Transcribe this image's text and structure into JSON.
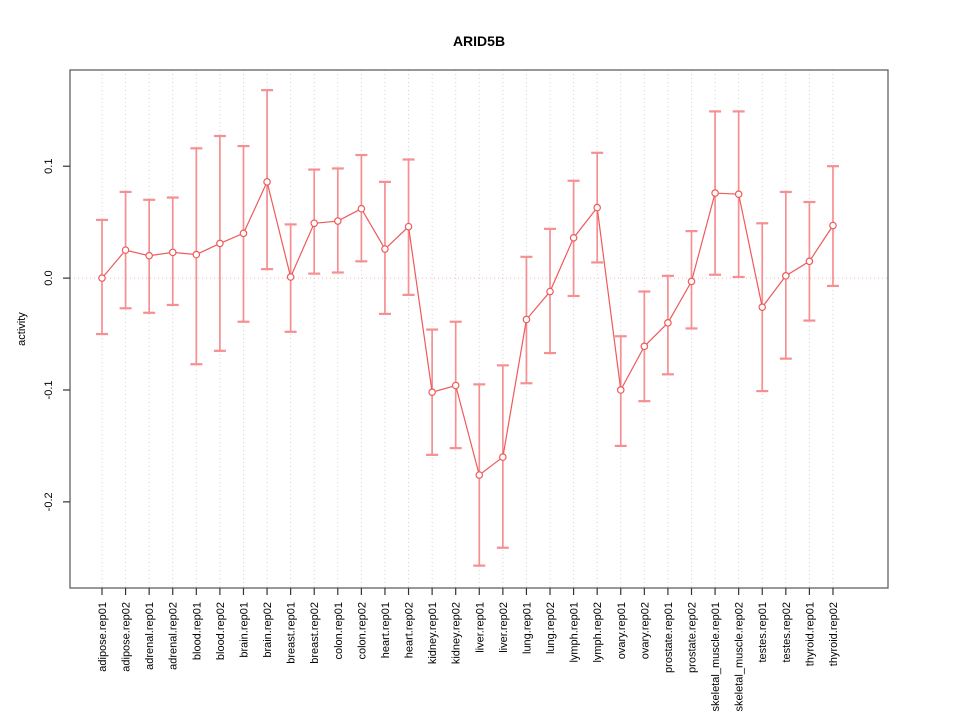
{
  "page": {
    "background": "#ffffff"
  },
  "chart_data": {
    "type": "line",
    "title": "ARID5B",
    "xlabel": "",
    "ylabel": "activity",
    "legend_position": "none",
    "categories": [
      "adipose.rep01",
      "adipose.rep02",
      "adrenal.rep01",
      "adrenal.rep02",
      "blood.rep01",
      "blood.rep02",
      "brain.rep01",
      "brain.rep02",
      "breast.rep01",
      "breast.rep02",
      "colon.rep01",
      "colon.rep02",
      "heart.rep01",
      "heart.rep02",
      "kidney.rep01",
      "kidney.rep02",
      "liver.rep01",
      "liver.rep02",
      "lung.rep01",
      "lung.rep02",
      "lymph.rep01",
      "lymph.rep02",
      "ovary.rep01",
      "ovary.rep02",
      "prostate.rep01",
      "prostate.rep02",
      "skeletal_muscle.rep01",
      "skeletal_muscle.rep02",
      "testes.rep01",
      "testes.rep02",
      "thyroid.rep01",
      "thyroid.rep02"
    ],
    "series": [
      {
        "name": "activity",
        "marker": "open-circle",
        "values": [
          0.0,
          0.025,
          0.02,
          0.023,
          0.021,
          0.031,
          0.04,
          0.086,
          0.001,
          0.049,
          0.051,
          0.062,
          0.026,
          0.046,
          -0.102,
          -0.096,
          -0.176,
          -0.16,
          -0.037,
          -0.012,
          0.036,
          0.063,
          -0.1,
          -0.061,
          -0.04,
          -0.003,
          0.076,
          0.075,
          -0.026,
          0.002,
          0.015,
          0.047
        ],
        "error_low": [
          -0.05,
          -0.027,
          -0.031,
          -0.024,
          -0.077,
          -0.065,
          -0.039,
          0.008,
          -0.048,
          0.004,
          0.005,
          0.015,
          -0.032,
          -0.015,
          -0.158,
          -0.152,
          -0.257,
          -0.241,
          -0.094,
          -0.067,
          -0.016,
          0.014,
          -0.15,
          -0.11,
          -0.086,
          -0.045,
          0.003,
          0.001,
          -0.101,
          -0.072,
          -0.038,
          -0.007
        ],
        "error_high": [
          0.052,
          0.077,
          0.07,
          0.072,
          0.116,
          0.127,
          0.118,
          0.168,
          0.048,
          0.097,
          0.098,
          0.11,
          0.086,
          0.106,
          -0.046,
          -0.039,
          -0.095,
          -0.078,
          0.019,
          0.044,
          0.087,
          0.112,
          -0.052,
          -0.012,
          0.002,
          0.042,
          0.149,
          0.149,
          0.049,
          0.077,
          0.068,
          0.1
        ]
      }
    ],
    "y_ticks": [
      {
        "value": -0.2,
        "label": "-0.2"
      },
      {
        "value": -0.1,
        "label": "-0.1"
      },
      {
        "value": 0.0,
        "label": "0.0"
      },
      {
        "value": 0.1,
        "label": "0.1"
      }
    ],
    "ylim": [
      -0.277,
      0.186
    ],
    "grid": {
      "vertical": true,
      "horizontal": false,
      "style": "dotted"
    },
    "zero_line": {
      "value": 0.0,
      "style": "dotted"
    },
    "colors": {
      "point_and_line": "#ee5a5a",
      "error_bar": "#f58f92",
      "zero_line": "#f6b4b4",
      "gridline": "#d2d2d2",
      "axis_box": "#555555",
      "tick": "#333333",
      "text": "#000000"
    }
  }
}
